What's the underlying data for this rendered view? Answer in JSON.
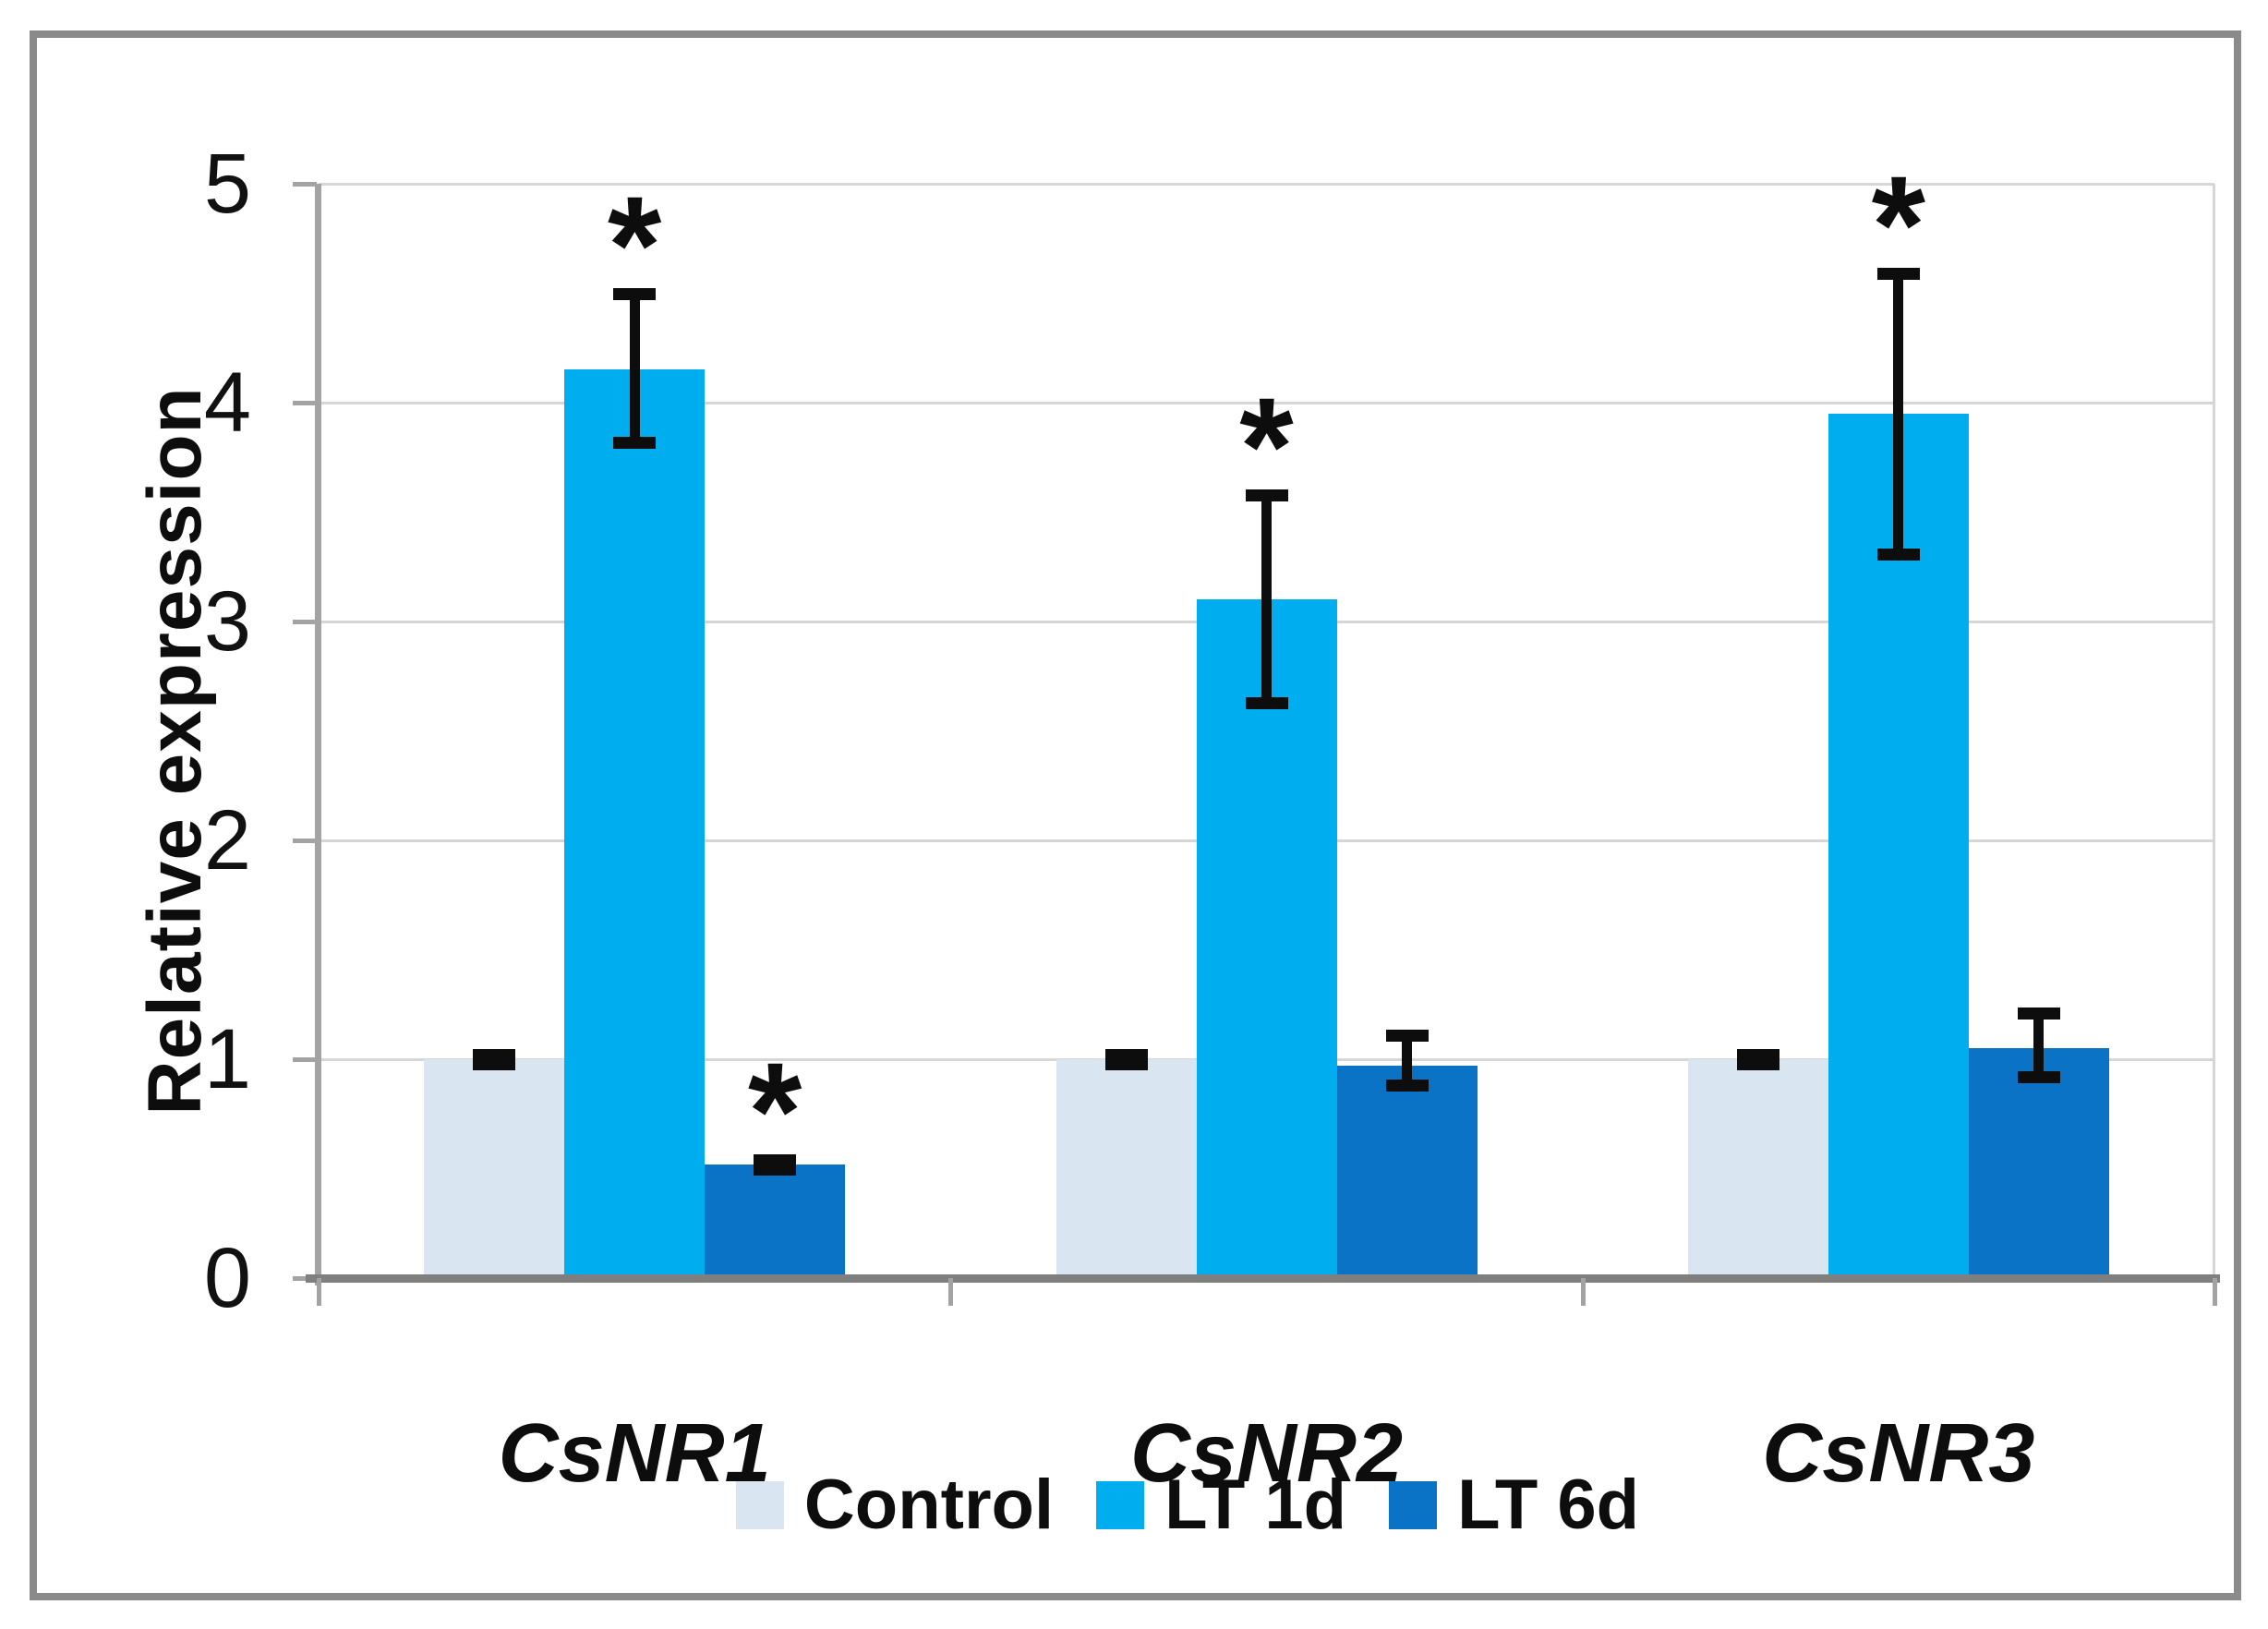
{
  "chart_data": {
    "type": "bar",
    "title": "",
    "xlabel": "",
    "ylabel": "Relative expression",
    "categories": [
      "CsNR1",
      "CsNR2",
      "CsNR3"
    ],
    "series": [
      {
        "name": "Control",
        "color": "#d9e5f1",
        "values": [
          1.0,
          1.0,
          1.0
        ],
        "err_up": [
          0.02,
          0.02,
          0.02
        ],
        "err_down": [
          0.02,
          0.02,
          0.02
        ],
        "significant": [
          false,
          false,
          false
        ]
      },
      {
        "name": "LT 1d",
        "color": "#00aeef",
        "values": [
          4.15,
          3.1,
          3.95
        ],
        "err_up": [
          0.35,
          0.48,
          0.64
        ],
        "err_down": [
          0.33,
          0.47,
          0.64
        ],
        "significant": [
          true,
          true,
          true
        ]
      },
      {
        "name": "LT 6d",
        "color": "#0a73c6",
        "values": [
          0.52,
          0.97,
          1.05
        ],
        "err_up": [
          0.02,
          0.14,
          0.16
        ],
        "err_down": [
          0.02,
          0.09,
          0.13
        ],
        "significant": [
          true,
          false,
          false
        ]
      }
    ],
    "ylim": [
      0,
      5
    ],
    "yticks": [
      0,
      1,
      2,
      3,
      4,
      5
    ],
    "grid": true,
    "legend_position": "bottom",
    "significance_marker": "*"
  }
}
